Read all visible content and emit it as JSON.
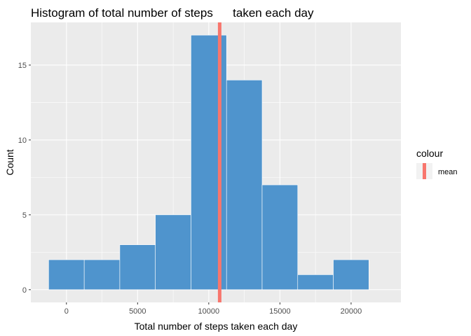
{
  "chart_data": {
    "type": "bar",
    "title": "Histogram of total number of steps      taken each day",
    "xlabel": "Total number of steps taken each day",
    "ylabel": "Count",
    "xlim": [
      -2500,
      23500
    ],
    "ylim": [
      -0.85,
      17.85
    ],
    "binwidth": 2500,
    "bins": [
      {
        "x0": -1250,
        "x1": 1250,
        "count": 2
      },
      {
        "x0": 1250,
        "x1": 3750,
        "count": 2
      },
      {
        "x0": 3750,
        "x1": 6250,
        "count": 3
      },
      {
        "x0": 6250,
        "x1": 8750,
        "count": 5
      },
      {
        "x0": 8750,
        "x1": 11250,
        "count": 17
      },
      {
        "x0": 11250,
        "x1": 13750,
        "count": 14
      },
      {
        "x0": 13750,
        "x1": 16250,
        "count": 7
      },
      {
        "x0": 16250,
        "x1": 18750,
        "count": 1
      },
      {
        "x0": 18750,
        "x1": 21250,
        "count": 2
      }
    ],
    "x_ticks": [
      0,
      5000,
      10000,
      15000,
      20000
    ],
    "x_tick_labels": [
      "0",
      "5000",
      "10000",
      "15000",
      "20000"
    ],
    "y_ticks": [
      0,
      5,
      10,
      15
    ],
    "y_tick_labels": [
      "0",
      "5",
      "10",
      "15"
    ],
    "mean_line": {
      "x": 10766,
      "label": "mean"
    },
    "legend": {
      "title": "colour",
      "position": "right"
    },
    "grid": true,
    "colors": {
      "bar_fill": "#4f94cd",
      "bar_stroke": "#ffffff",
      "mean_line": "#f8766d",
      "panel_bg": "#ebebeb",
      "grid": "#ffffff"
    }
  }
}
